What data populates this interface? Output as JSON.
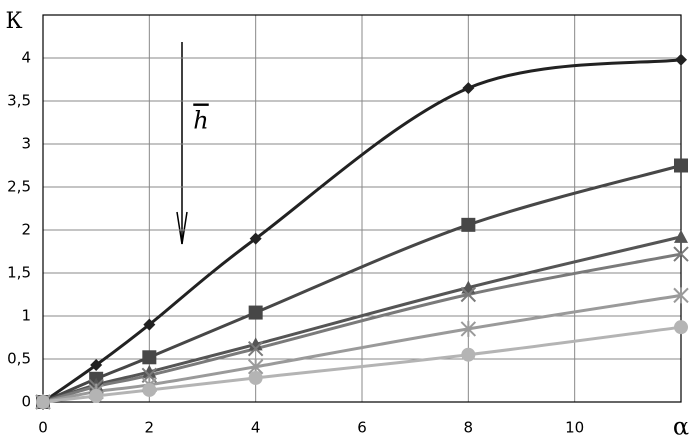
{
  "chart_data": {
    "type": "line",
    "ylabel": "К",
    "annotation": "h",
    "x": [
      0,
      1,
      2,
      4,
      8,
      12
    ],
    "xlim": [
      0,
      12
    ],
    "xticks": [
      0,
      2,
      4,
      6,
      8,
      10,
      {
        "value": 12,
        "label": "α"
      }
    ],
    "ylim": [
      0,
      4.5
    ],
    "yticks": [
      0,
      {
        "value": 0.5,
        "label": "0,5"
      },
      1,
      {
        "value": 1.5,
        "label": "1,5"
      },
      2,
      {
        "value": 2.5,
        "label": "2,5"
      },
      3,
      {
        "value": 3.5,
        "label": "3,5"
      },
      4
    ],
    "grid": true,
    "series": [
      {
        "color": "#222222",
        "marker": "diamond",
        "values": [
          0,
          0.43,
          0.9,
          1.9,
          3.65,
          3.98
        ]
      },
      {
        "color": "#474747",
        "marker": "square",
        "values": [
          0,
          0.27,
          0.52,
          1.04,
          2.06,
          2.75
        ]
      },
      {
        "color": "#555555",
        "marker": "triangle",
        "values": [
          0,
          0.2,
          0.35,
          0.67,
          1.33,
          1.92
        ]
      },
      {
        "color": "#7a7a7a",
        "marker": "cross",
        "values": [
          0,
          0.18,
          0.31,
          0.62,
          1.25,
          1.72
        ]
      },
      {
        "color": "#9a9a9a",
        "marker": "star",
        "values": [
          0,
          0.12,
          0.2,
          0.41,
          0.85,
          1.24
        ]
      },
      {
        "color": "#b4b4b4",
        "marker": "circle",
        "values": [
          0,
          0.07,
          0.14,
          0.28,
          0.55,
          0.87
        ]
      }
    ]
  }
}
